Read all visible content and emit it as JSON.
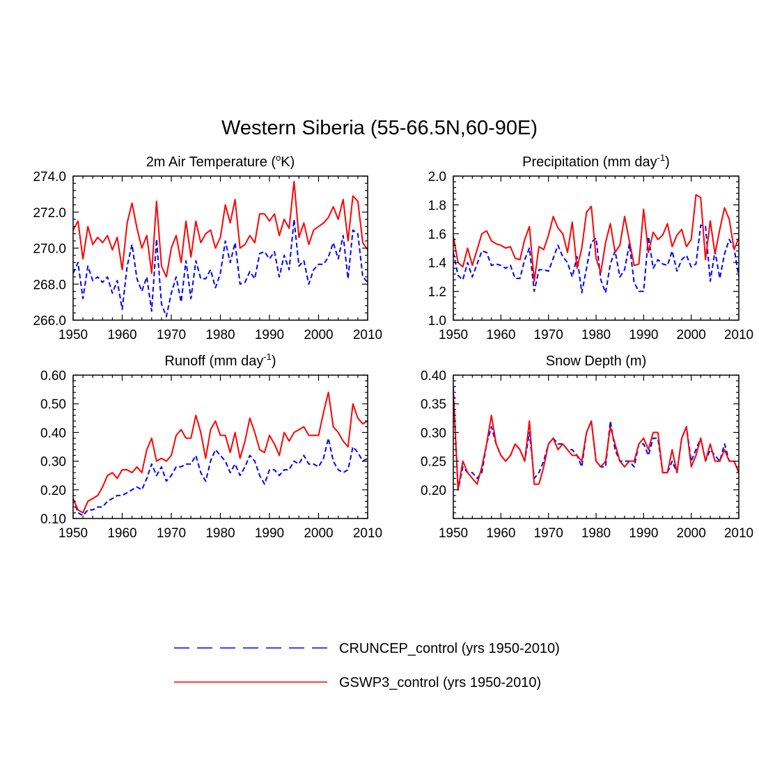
{
  "figure": {
    "title": "Western Siberia (55-66.5N,60-90E)"
  },
  "colors": {
    "cruncep": "#0000ff",
    "gswp3": "#ff0000",
    "axis": "#000000"
  },
  "legend": [
    {
      "label": "CRUNCEP_control (yrs 1950-2010)",
      "color": "#0000ff",
      "style": "dashed"
    },
    {
      "label": "GSWP3_control (yrs 1950-2010)",
      "color": "#ff0000",
      "style": "solid"
    }
  ],
  "chart_data": [
    {
      "type": "line",
      "title": "2m Air Temperature (",
      "title_sup": "o",
      "title_after": "K)",
      "xlim": [
        1950,
        2010
      ],
      "ylim": [
        266,
        274
      ],
      "xticks": [
        1950,
        1960,
        1970,
        1980,
        1990,
        2000,
        2010
      ],
      "yticks": [
        266,
        268,
        270,
        272,
        274
      ],
      "yticklabels": [
        "266.0",
        "268.0",
        "270.0",
        "272.0",
        "274.0"
      ],
      "yminor_step": 0.4,
      "xstart": 1950,
      "series": [
        {
          "name": "CRUNCEP_control",
          "values": [
            268.6,
            269.2,
            267.2,
            269.0,
            268.2,
            268.4,
            268.1,
            268.4,
            267.5,
            268.2,
            266.6,
            269.0,
            270.2,
            268.3,
            267.6,
            268.4,
            266.5,
            270.5,
            266.9,
            266.2,
            267.5,
            268.4,
            267.0,
            269.3,
            267.2,
            269.3,
            268.3,
            268.3,
            268.8,
            267.8,
            268.6,
            270.4,
            269.2,
            270.3,
            268.0,
            268.1,
            268.7,
            268.3,
            269.7,
            269.8,
            269.4,
            269.8,
            268.4,
            269.6,
            268.8,
            271.6,
            269.0,
            269.3,
            268.0,
            268.8,
            269.1,
            269.1,
            269.5,
            270.3,
            269.4,
            270.7,
            268.3,
            271.0,
            270.8,
            268.4,
            268.1
          ]
        },
        {
          "name": "GSWP3_control",
          "values": [
            271.0,
            271.5,
            269.4,
            271.2,
            270.2,
            270.6,
            270.3,
            270.7,
            269.9,
            270.6,
            268.8,
            271.4,
            272.5,
            271.1,
            270.0,
            270.7,
            268.6,
            272.6,
            269.0,
            268.4,
            270.0,
            270.7,
            269.2,
            271.5,
            269.5,
            271.5,
            270.3,
            270.8,
            271.0,
            270.0,
            270.6,
            272.4,
            271.4,
            272.7,
            270.0,
            270.2,
            270.7,
            270.3,
            271.9,
            271.9,
            271.5,
            271.9,
            270.7,
            271.6,
            271.1,
            273.7,
            270.6,
            271.4,
            270.2,
            271.0,
            271.2,
            271.4,
            271.7,
            272.3,
            271.6,
            272.7,
            270.4,
            272.9,
            272.6,
            270.3,
            269.9
          ]
        }
      ]
    },
    {
      "type": "line",
      "title": "Precipitation (mm day",
      "title_sup": "-1",
      "title_after": ")",
      "xlim": [
        1950,
        2010
      ],
      "ylim": [
        1.0,
        2.0
      ],
      "xticks": [
        1950,
        1960,
        1970,
        1980,
        1990,
        2000,
        2010
      ],
      "yticks": [
        1.0,
        1.2,
        1.4,
        1.6,
        1.8,
        2.0
      ],
      "yticklabels": [
        "1.0",
        "1.2",
        "1.4",
        "1.6",
        "1.8",
        "2.0"
      ],
      "yminor_step": 0.04,
      "xstart": 1950,
      "series": [
        {
          "name": "CRUNCEP_control",
          "values": [
            1.47,
            1.31,
            1.28,
            1.4,
            1.3,
            1.39,
            1.48,
            1.47,
            1.38,
            1.39,
            1.38,
            1.36,
            1.38,
            1.29,
            1.29,
            1.42,
            1.5,
            1.2,
            1.35,
            1.35,
            1.34,
            1.43,
            1.52,
            1.44,
            1.4,
            1.3,
            1.44,
            1.19,
            1.36,
            1.54,
            1.57,
            1.28,
            1.19,
            1.39,
            1.48,
            1.3,
            1.35,
            1.53,
            1.26,
            1.2,
            1.2,
            1.58,
            1.36,
            1.42,
            1.39,
            1.38,
            1.48,
            1.34,
            1.42,
            1.45,
            1.37,
            1.39,
            1.66,
            1.65,
            1.27,
            1.48,
            1.29,
            1.46,
            1.56,
            1.5,
            1.3
          ]
        },
        {
          "name": "GSWP3_control",
          "values": [
            1.58,
            1.4,
            1.37,
            1.5,
            1.38,
            1.49,
            1.6,
            1.62,
            1.55,
            1.53,
            1.52,
            1.5,
            1.51,
            1.43,
            1.42,
            1.56,
            1.65,
            1.27,
            1.51,
            1.49,
            1.59,
            1.72,
            1.64,
            1.6,
            1.47,
            1.68,
            1.36,
            1.5,
            1.75,
            1.79,
            1.43,
            1.33,
            1.54,
            1.67,
            1.47,
            1.52,
            1.72,
            1.55,
            1.38,
            1.39,
            1.77,
            1.47,
            1.61,
            1.56,
            1.59,
            1.67,
            1.51,
            1.59,
            1.63,
            1.51,
            1.56,
            1.87,
            1.85,
            1.42,
            1.69,
            1.46,
            1.63,
            1.78,
            1.7,
            1.49,
            1.57
          ]
        }
      ]
    },
    {
      "type": "line",
      "title": "Runoff (mm day",
      "title_sup": "-1",
      "title_after": ")",
      "xlim": [
        1950,
        2010
      ],
      "ylim": [
        0.1,
        0.6
      ],
      "xticks": [
        1950,
        1960,
        1970,
        1980,
        1990,
        2000,
        2010
      ],
      "yticks": [
        0.1,
        0.2,
        0.3,
        0.4,
        0.5,
        0.6
      ],
      "yticklabels": [
        "0.10",
        "0.20",
        "0.30",
        "0.40",
        "0.50",
        "0.60"
      ],
      "yminor_step": 0.02,
      "xstart": 1950,
      "series": [
        {
          "name": "CRUNCEP_control",
          "values": [
            0.17,
            0.12,
            0.11,
            0.13,
            0.13,
            0.14,
            0.14,
            0.16,
            0.17,
            0.18,
            0.18,
            0.19,
            0.2,
            0.21,
            0.2,
            0.24,
            0.29,
            0.25,
            0.28,
            0.23,
            0.25,
            0.28,
            0.28,
            0.29,
            0.29,
            0.32,
            0.26,
            0.23,
            0.3,
            0.34,
            0.32,
            0.3,
            0.26,
            0.29,
            0.25,
            0.28,
            0.32,
            0.3,
            0.25,
            0.22,
            0.27,
            0.27,
            0.25,
            0.27,
            0.27,
            0.3,
            0.29,
            0.32,
            0.29,
            0.29,
            0.28,
            0.31,
            0.38,
            0.3,
            0.27,
            0.26,
            0.27,
            0.35,
            0.33,
            0.3,
            0.31
          ]
        },
        {
          "name": "GSWP3_control",
          "values": [
            0.17,
            0.13,
            0.12,
            0.16,
            0.17,
            0.18,
            0.21,
            0.25,
            0.26,
            0.24,
            0.27,
            0.27,
            0.26,
            0.28,
            0.26,
            0.34,
            0.38,
            0.3,
            0.31,
            0.3,
            0.32,
            0.39,
            0.41,
            0.38,
            0.38,
            0.46,
            0.4,
            0.31,
            0.41,
            0.44,
            0.39,
            0.39,
            0.33,
            0.4,
            0.31,
            0.37,
            0.45,
            0.4,
            0.34,
            0.33,
            0.39,
            0.36,
            0.32,
            0.4,
            0.37,
            0.4,
            0.41,
            0.42,
            0.39,
            0.39,
            0.39,
            0.47,
            0.54,
            0.42,
            0.4,
            0.37,
            0.35,
            0.5,
            0.45,
            0.43,
            0.44
          ]
        }
      ]
    },
    {
      "type": "line",
      "title": "Snow Depth (m)",
      "title_sup": "",
      "title_after": "",
      "xlim": [
        1950,
        2010
      ],
      "ylim": [
        0.15,
        0.4
      ],
      "xticks": [
        1950,
        1960,
        1970,
        1980,
        1990,
        2000,
        2010
      ],
      "yticks": [
        0.2,
        0.25,
        0.3,
        0.35,
        0.4
      ],
      "yticklabels": [
        "0.20",
        "0.25",
        "0.30",
        "0.35",
        "0.40"
      ],
      "yminor_step": 0.01,
      "xstart": 1950,
      "series": [
        {
          "name": "CRUNCEP_control",
          "values": [
            0.38,
            0.2,
            0.24,
            0.23,
            0.23,
            0.22,
            0.23,
            0.28,
            0.31,
            0.28,
            0.26,
            0.25,
            0.26,
            0.28,
            0.27,
            0.25,
            0.3,
            0.22,
            0.23,
            0.25,
            0.28,
            0.29,
            0.28,
            0.28,
            0.27,
            0.27,
            0.26,
            0.24,
            0.3,
            0.32,
            0.25,
            0.24,
            0.24,
            0.32,
            0.27,
            0.25,
            0.25,
            0.25,
            0.24,
            0.28,
            0.28,
            0.26,
            0.29,
            0.29,
            0.23,
            0.23,
            0.25,
            0.23,
            0.29,
            0.31,
            0.25,
            0.27,
            0.29,
            0.25,
            0.27,
            0.26,
            0.25,
            0.28,
            0.25,
            0.25,
            0.23
          ]
        },
        {
          "name": "GSWP3_control",
          "values": [
            0.37,
            0.2,
            0.25,
            0.23,
            0.22,
            0.21,
            0.24,
            0.28,
            0.33,
            0.28,
            0.26,
            0.25,
            0.26,
            0.28,
            0.27,
            0.25,
            0.32,
            0.21,
            0.21,
            0.24,
            0.28,
            0.29,
            0.27,
            0.28,
            0.27,
            0.26,
            0.26,
            0.25,
            0.3,
            0.32,
            0.25,
            0.24,
            0.25,
            0.31,
            0.28,
            0.25,
            0.24,
            0.25,
            0.25,
            0.28,
            0.29,
            0.27,
            0.3,
            0.3,
            0.23,
            0.23,
            0.27,
            0.23,
            0.29,
            0.31,
            0.24,
            0.26,
            0.29,
            0.25,
            0.28,
            0.25,
            0.25,
            0.27,
            0.25,
            0.25,
            0.23
          ]
        }
      ]
    }
  ]
}
